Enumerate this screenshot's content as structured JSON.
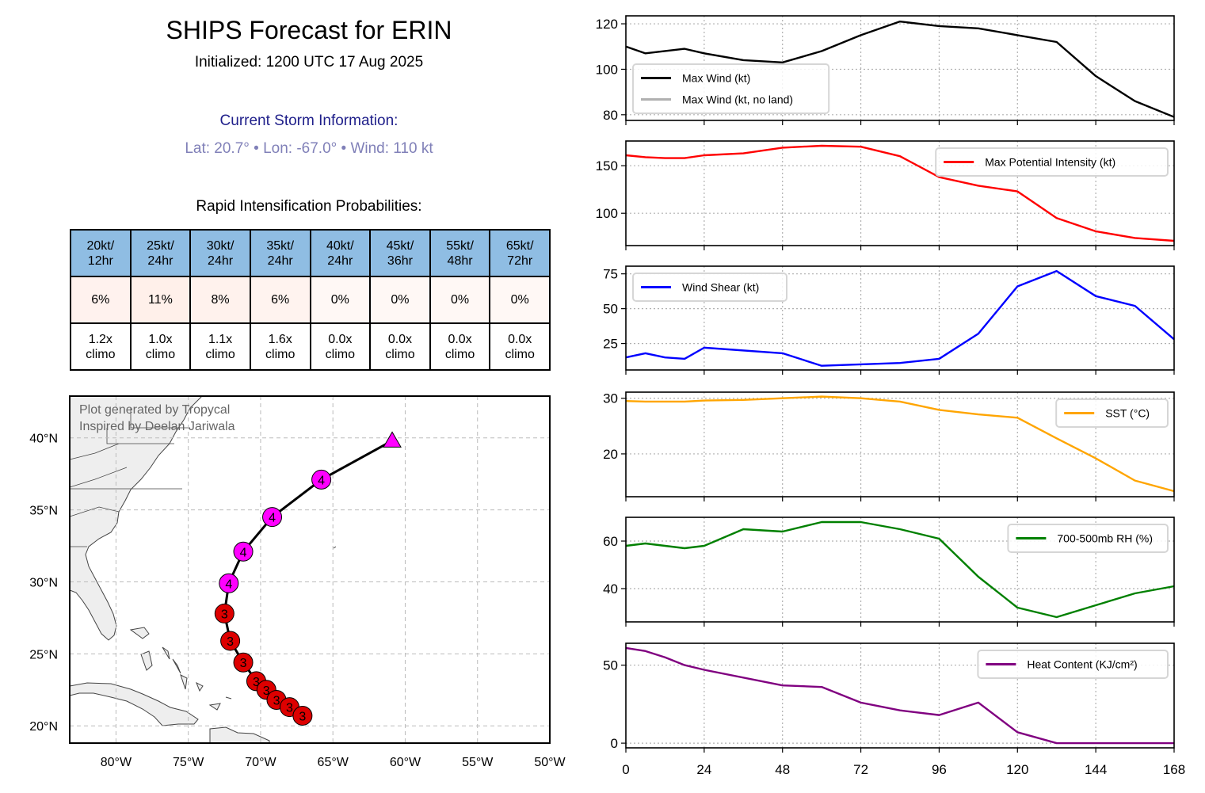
{
  "header": {
    "title": "SHIPS Forecast for ERIN",
    "initialized": "Initialized: 1200 UTC 17 Aug 2025"
  },
  "current_storm": {
    "heading": "Current Storm Information:",
    "summary": "Lat: 20.7°  • Lon: -67.0°  • Wind: 110 kt",
    "lat": 20.7,
    "lon": -67.0,
    "wind_kt": 110
  },
  "ri_table": {
    "heading": "Rapid Intensification Probabilities:",
    "columns": [
      {
        "line1": "20kt/",
        "line2": "12hr",
        "prob": "6%",
        "climo1": "1.2x",
        "climo2": "climo",
        "prob_color": "#fff2ee"
      },
      {
        "line1": "25kt/",
        "line2": "24hr",
        "prob": "11%",
        "climo1": "1.0x",
        "climo2": "climo",
        "prob_color": "#fff0ea"
      },
      {
        "line1": "30kt/",
        "line2": "24hr",
        "prob": "8%",
        "climo1": "1.1x",
        "climo2": "climo",
        "prob_color": "#fff2ed"
      },
      {
        "line1": "35kt/",
        "line2": "24hr",
        "prob": "6%",
        "climo1": "1.6x",
        "climo2": "climo",
        "prob_color": "#fff3ef"
      },
      {
        "line1": "40kt/",
        "line2": "24hr",
        "prob": "0%",
        "climo1": "0.0x",
        "climo2": "climo",
        "prob_color": "#fff8f5"
      },
      {
        "line1": "45kt/",
        "line2": "36hr",
        "prob": "0%",
        "climo1": "0.0x",
        "climo2": "climo",
        "prob_color": "#fff8f5"
      },
      {
        "line1": "55kt/",
        "line2": "48hr",
        "prob": "0%",
        "climo1": "0.0x",
        "climo2": "climo",
        "prob_color": "#fff8f5"
      },
      {
        "line1": "65kt/",
        "line2": "72hr",
        "prob": "0%",
        "climo1": "0.0x",
        "climo2": "climo",
        "prob_color": "#fff8f5"
      }
    ]
  },
  "map": {
    "credit_line1": "Plot generated by Tropycal",
    "credit_line2": "Inspired by Deelan Jariwala",
    "lon_range": [
      -83.2,
      -50.0
    ],
    "lat_range": [
      18.8,
      42.9
    ],
    "lon_ticks": [
      -80,
      -75,
      -70,
      -65,
      -60,
      -55,
      -50
    ],
    "lon_tick_labels": [
      "80°W",
      "75°W",
      "70°W",
      "65°W",
      "60°W",
      "55°W",
      "50°W"
    ],
    "lat_ticks": [
      20,
      25,
      30,
      35,
      40
    ],
    "lat_tick_labels": [
      "20°N",
      "25°N",
      "30°N",
      "35°N",
      "40°N"
    ],
    "category_colors": {
      "3": "#dd0000",
      "4": "#ff00ff"
    },
    "track": [
      {
        "lon": -67.1,
        "lat": 20.7,
        "cat": "3",
        "marker": "circle"
      },
      {
        "lon": -68.0,
        "lat": 21.3,
        "cat": "3",
        "marker": "circle"
      },
      {
        "lon": -68.9,
        "lat": 21.8,
        "cat": "3",
        "marker": "circle"
      },
      {
        "lon": -69.6,
        "lat": 22.5,
        "cat": "3",
        "marker": "circle"
      },
      {
        "lon": -70.3,
        "lat": 23.1,
        "cat": "3",
        "marker": "circle"
      },
      {
        "lon": -71.2,
        "lat": 24.4,
        "cat": "3",
        "marker": "circle"
      },
      {
        "lon": -72.1,
        "lat": 25.9,
        "cat": "3",
        "marker": "circle"
      },
      {
        "lon": -72.5,
        "lat": 27.8,
        "cat": "3",
        "marker": "circle"
      },
      {
        "lon": -72.2,
        "lat": 29.9,
        "cat": "4",
        "marker": "circle"
      },
      {
        "lon": -71.2,
        "lat": 32.1,
        "cat": "4",
        "marker": "circle"
      },
      {
        "lon": -69.2,
        "lat": 34.5,
        "cat": "4",
        "marker": "circle"
      },
      {
        "lon": -65.8,
        "lat": 37.1,
        "cat": "4",
        "marker": "circle"
      },
      {
        "lon": -60.9,
        "lat": 39.8,
        "cat": "",
        "marker": "triangle"
      }
    ]
  },
  "chart_data": [
    {
      "type": "line",
      "id": "max-wind",
      "x": [
        0,
        6,
        18,
        24,
        36,
        48,
        60,
        72,
        84,
        96,
        108,
        120,
        132,
        144,
        156,
        168
      ],
      "series": [
        {
          "name": "Max Wind (kt)",
          "color": "#000000",
          "values": [
            110,
            107,
            109,
            107,
            104,
            103,
            108,
            115,
            121,
            119,
            118,
            115,
            112,
            97,
            86,
            79
          ]
        },
        {
          "name": "Max Wind (kt, no land)",
          "color": "#b0b0b0",
          "values": []
        }
      ],
      "ylim": [
        77.5,
        123.5
      ],
      "yticks": [
        80,
        100,
        120
      ],
      "legend": "lower-left"
    },
    {
      "type": "line",
      "id": "mpi",
      "x": [
        0,
        6,
        12,
        18,
        24,
        36,
        48,
        60,
        72,
        84,
        96,
        108,
        120,
        132,
        144,
        156,
        168
      ],
      "series": [
        {
          "name": "Max Potential Intensity (kt)",
          "color": "#ff0000",
          "values": [
            161,
            159,
            158,
            158,
            161,
            163,
            169,
            171,
            170,
            160,
            138,
            129,
            123,
            95,
            81,
            74,
            71
          ]
        }
      ],
      "ylim": [
        66,
        176
      ],
      "yticks": [
        100,
        150
      ],
      "legend": "upper-right"
    },
    {
      "type": "line",
      "id": "shear",
      "x": [
        0,
        6,
        12,
        18,
        24,
        48,
        60,
        84,
        96,
        108,
        120,
        132,
        144,
        156,
        168
      ],
      "series": [
        {
          "name": "Wind Shear (kt)",
          "color": "#0000ff",
          "values": [
            15,
            18,
            15,
            14,
            22,
            18,
            9,
            11,
            14,
            32,
            66,
            77,
            59,
            52,
            28
          ]
        }
      ],
      "ylim": [
        6,
        80.5
      ],
      "yticks": [
        25,
        50,
        75
      ],
      "legend": "upper-left"
    },
    {
      "type": "line",
      "id": "sst",
      "x": [
        0,
        6,
        18,
        24,
        36,
        48,
        60,
        72,
        84,
        96,
        108,
        120,
        132,
        144,
        156,
        168
      ],
      "series": [
        {
          "name": "SST (°C)",
          "color": "#ffa500",
          "values": [
            29.5,
            29.4,
            29.4,
            29.6,
            29.7,
            30.0,
            30.3,
            30.0,
            29.4,
            27.9,
            27.1,
            26.5,
            22.8,
            19.2,
            15.2,
            13.3
          ]
        }
      ],
      "ylim": [
        12.3,
        31.1
      ],
      "yticks": [
        20,
        30
      ],
      "legend": "upper-right"
    },
    {
      "type": "line",
      "id": "rh",
      "x": [
        0,
        6,
        18,
        24,
        36,
        48,
        60,
        72,
        84,
        96,
        108,
        120,
        132,
        144,
        156,
        168
      ],
      "series": [
        {
          "name": "700-500mb RH (%)",
          "color": "#008000",
          "values": [
            58,
            59,
            57,
            58,
            65,
            64,
            68,
            68,
            65,
            61,
            45,
            32,
            28,
            33,
            38,
            41
          ]
        }
      ],
      "ylim": [
        26,
        70
      ],
      "yticks": [
        40,
        60
      ],
      "legend": "upper-right"
    },
    {
      "type": "line",
      "id": "ohc",
      "x": [
        0,
        6,
        12,
        18,
        24,
        48,
        60,
        72,
        84,
        96,
        108,
        120,
        132,
        144,
        156,
        168
      ],
      "series": [
        {
          "name": "Heat Content (KJ/cm²)",
          "color": "#800080",
          "values": [
            61,
            59,
            55,
            50,
            47,
            37,
            36,
            26,
            21,
            18,
            26,
            7,
            0,
            0,
            0,
            0
          ]
        }
      ],
      "ylim": [
        -3,
        64
      ],
      "yticks": [
        0,
        50
      ],
      "xlabel": "",
      "xticks": [
        0,
        24,
        48,
        72,
        96,
        120,
        144,
        168
      ],
      "legend": "upper-right"
    }
  ],
  "x_axis": {
    "range": [
      0,
      168
    ],
    "ticks": [
      0,
      24,
      48,
      72,
      96,
      120,
      144,
      168
    ],
    "tick_labels": [
      "0",
      "24",
      "48",
      "72",
      "96",
      "120",
      "144",
      "168"
    ]
  }
}
